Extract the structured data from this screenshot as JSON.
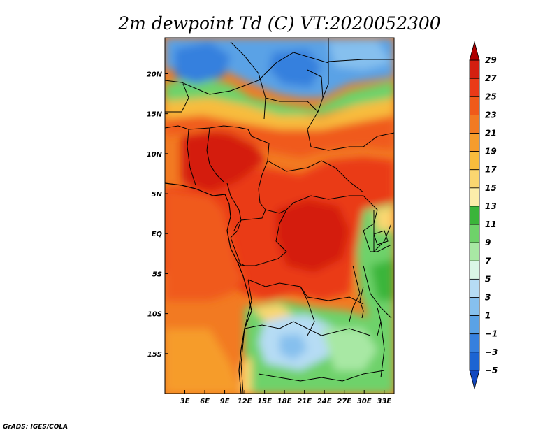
{
  "figure": {
    "title": "2m dewpoint Td (C) VT:2020052300",
    "credit": "GrADS: IGES/COLA"
  },
  "map": {
    "variable": "2m dewpoint Td",
    "units": "C",
    "valid_time": "2020052300",
    "region": "Central Africa",
    "lon_range": [
      0,
      34.5
    ],
    "lat_range": [
      -20,
      24.5
    ],
    "x_ticks": [
      "3E",
      "6E",
      "9E",
      "12E",
      "15E",
      "18E",
      "21E",
      "24E",
      "27E",
      "30E",
      "33E"
    ],
    "x_tick_values": [
      3,
      6,
      9,
      12,
      15,
      18,
      21,
      24,
      27,
      30,
      33
    ],
    "y_ticks": [
      "20N",
      "15N",
      "10N",
      "5N",
      "EQ",
      "5S",
      "10S",
      "15S"
    ],
    "y_tick_values": [
      20,
      15,
      10,
      5,
      0,
      -5,
      -10,
      -15
    ]
  },
  "colorbar": {
    "labels": [
      "29",
      "27",
      "25",
      "23",
      "21",
      "19",
      "17",
      "15",
      "13",
      "11",
      "9",
      "7",
      "5",
      "3",
      "1",
      "−1",
      "−3",
      "−5"
    ],
    "colors": [
      "#b00000",
      "#d41f10",
      "#ea3a18",
      "#f05a1a",
      "#f27a22",
      "#f69c2c",
      "#f8bc3c",
      "#fad670",
      "#fcedaa",
      "#3ab53a",
      "#6ed26a",
      "#a8e8a4",
      "#daf6e6",
      "#b6dcf4",
      "#86c0ee",
      "#5aa2e6",
      "#3680de",
      "#1c64d2",
      "#1248c0"
    ]
  }
}
